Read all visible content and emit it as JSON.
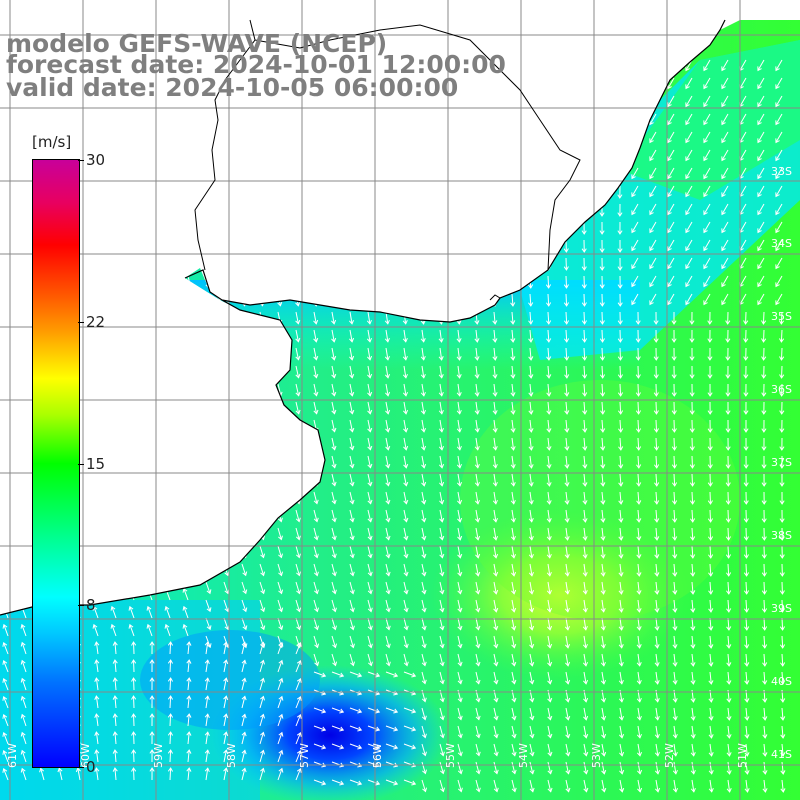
{
  "title": {
    "line1": "modelo GEFS-WAVE (NCEP)",
    "line2": "forecast date: 2024-10-01 12:00:00",
    "line3": "valid date: 2024-10-05 06:00:00"
  },
  "colorbar": {
    "unit": "[m/s]",
    "min": 0,
    "max": 30,
    "ticks": [
      {
        "label": "30",
        "value": 30
      },
      {
        "label": "22",
        "value": 22
      },
      {
        "label": "15",
        "value": 15
      },
      {
        "label": "8",
        "value": 8
      },
      {
        "label": "0",
        "value": 0
      }
    ],
    "colors": [
      "#0000ff",
      "#0073ff",
      "#00c8ff",
      "#00ffff",
      "#00ff99",
      "#00ff00",
      "#aaff00",
      "#ffff00",
      "#ff9900",
      "#ff5500",
      "#ff0000",
      "#e80060",
      "#c8009a"
    ]
  },
  "map": {
    "variable": "wind speed and direction",
    "right_axis_labels": [
      "33S",
      "34S",
      "35S",
      "36S",
      "37S",
      "38S",
      "39S",
      "40S",
      "41S"
    ],
    "bottom_axis_labels": [
      "61W",
      "60W",
      "59W",
      "58W",
      "57W",
      "56W",
      "55W",
      "54W",
      "53W",
      "52W",
      "51W"
    ],
    "land_color": "#ffffff",
    "grid_color": "#888888",
    "coast_color": "#000000",
    "arrow_color": "#ffffff",
    "field_note": "wind arrows mostly pointing south/southeast; stronger winds (yellow-green) in center-east, weaker (blue) near 40S 57W"
  }
}
